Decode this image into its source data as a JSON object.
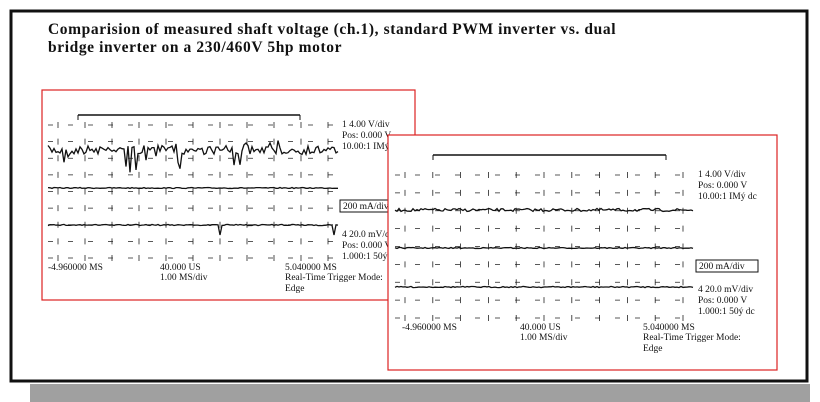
{
  "title": [
    "Comparision of measured shaft voltage (ch.1), standard PWM inverter vs. dual",
    "bridge inverter on a 230/460V 5hp motor"
  ],
  "panels": [
    {
      "ch1": [
        "1  4.00   V/div",
        "Pos:  0.000   V",
        "10.00:1  IMý  dc"
      ],
      "current_scale": "200 mA/div",
      "ch4": [
        "4  20.0   mV/div",
        "Pos:  0.000   V",
        "1.000:1   50ý  dc"
      ],
      "time_left": "-4.960000  MS",
      "time_center": [
        "40.000 US",
        "1.00 MS/div"
      ],
      "time_right": "5.040000 MS",
      "trigger": [
        "Real-Time Trigger Mode:",
        "Edge"
      ]
    },
    {
      "ch1": [
        "1  4.00   V/div",
        "Pos:  0.000   V",
        "10.00:1  IMý  dc"
      ],
      "current_scale": "200 mA/div",
      "ch4": [
        "4  20.0   mV/div",
        "Pos:  0.000   V",
        "1.000:1   50ý  dc"
      ],
      "time_left": "-4.960000  MS",
      "time_center": [
        "40.000 US",
        "1.00 MS/div"
      ],
      "time_right": "5.040000 MS",
      "trigger": [
        "Real-Time Trigger Mode:",
        "Edge"
      ]
    }
  ]
}
